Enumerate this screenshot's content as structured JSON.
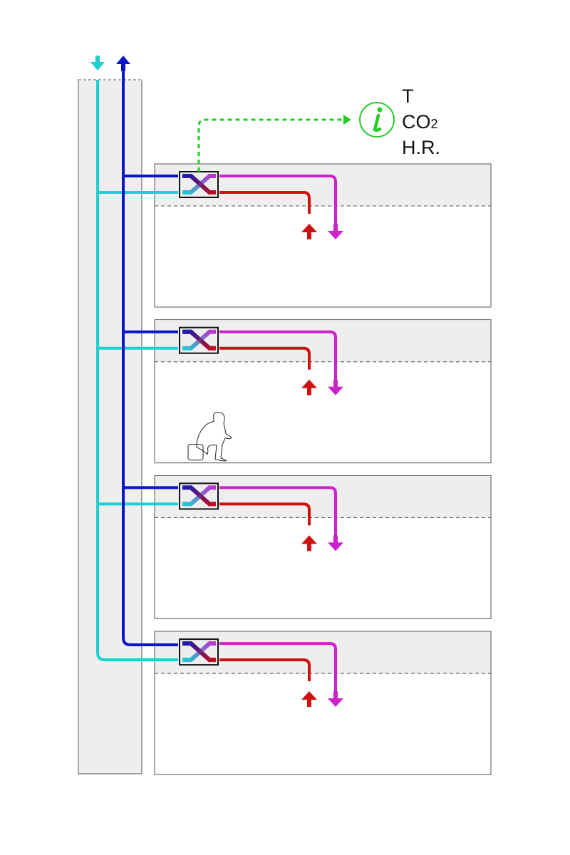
{
  "sensor": {
    "labels": [
      "T",
      "CO",
      "H.R."
    ],
    "co2_subscript": "2",
    "icon": "info-icon"
  },
  "floors": 4,
  "occupant_floor": 2,
  "colors": {
    "fresh_air": "#1ecfd2",
    "exhaust_air": "#0a14c8",
    "supply_air": "#cc22cc",
    "extract_air": "#d01010",
    "sensor": "#22cc22",
    "shaft_fill": "#eeeeee"
  }
}
